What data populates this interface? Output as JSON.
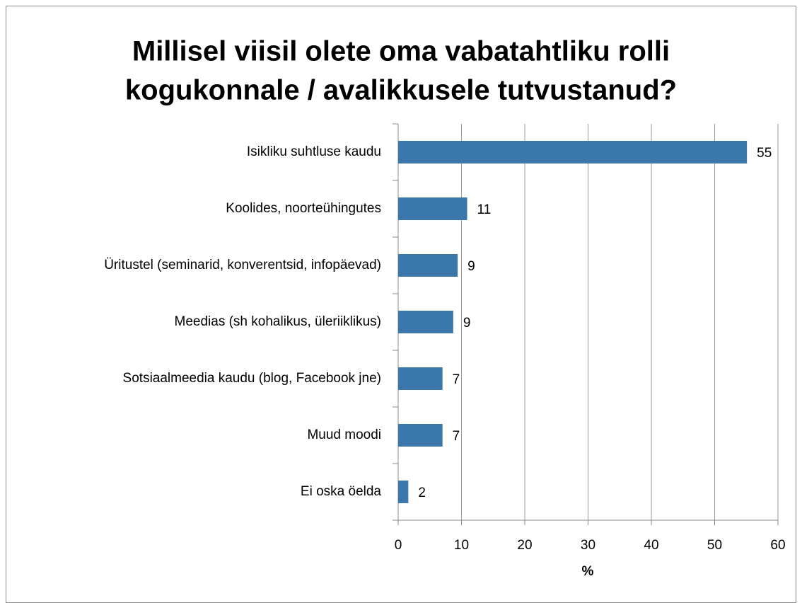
{
  "chart_data": {
    "type": "bar",
    "orientation": "horizontal",
    "title": [
      "Millisel viisil olete oma vabatahtliku rolli",
      "kogukonnale / avalikkusele tutvustanud?"
    ],
    "x_label": "%",
    "categories": [
      "Isikliku suhtluse kaudu",
      "Koolides, noorteühingutes",
      "Üritustel (seminarid, konverentsid, infopäevad)",
      "Meedias (sh kohalikus, üleriiklikus)",
      "Sotsiaalmeedia kaudu  (blog, Facebook jne)",
      "Muud moodi",
      "Ei oska öelda"
    ],
    "values": [
      55.1,
      10.9,
      9.4,
      8.7,
      7.0,
      7.0,
      1.6
    ],
    "value_labels": [
      "55",
      "11",
      "9",
      "9",
      "7",
      "7",
      "2"
    ],
    "color": "#3a77aa",
    "xlim": [
      0,
      60
    ],
    "xticks": [
      0,
      10,
      20,
      30,
      40,
      50,
      60
    ],
    "grid": true
  }
}
